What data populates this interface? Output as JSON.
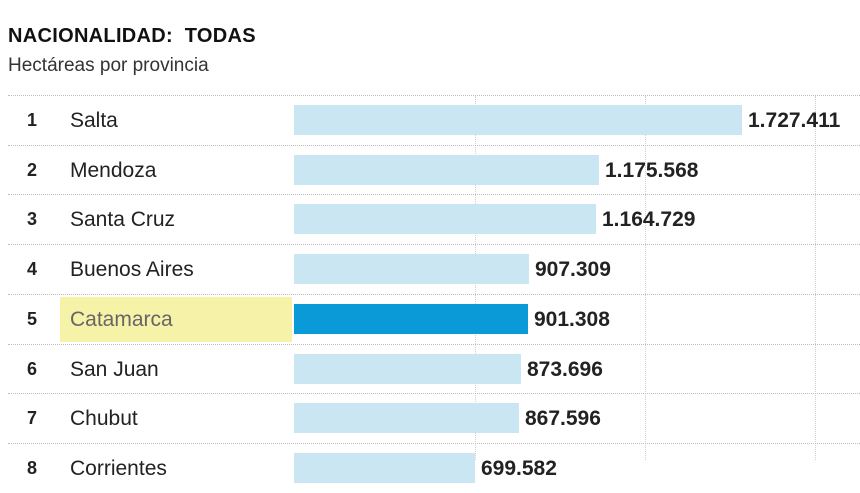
{
  "chart_data": {
    "type": "bar",
    "title": "NACIONALIDAD:  TODAS",
    "subtitle": "Hectáreas por provincia",
    "orientation": "horizontal",
    "highlight_color": "#0a9ad8",
    "bar_color": "#c9e6f2",
    "highlight_label_color": "#f6f2a8",
    "rows": [
      {
        "rank": "1",
        "name": "Salta",
        "value": 1727411,
        "label": "1.727.411",
        "highlight": false
      },
      {
        "rank": "2",
        "name": "Mendoza",
        "value": 1175568,
        "label": "1.175.568",
        "highlight": false
      },
      {
        "rank": "3",
        "name": "Santa Cruz",
        "value": 1164729,
        "label": "1.164.729",
        "highlight": false
      },
      {
        "rank": "4",
        "name": "Buenos Aires",
        "value": 907309,
        "label": "907.309",
        "highlight": false
      },
      {
        "rank": "5",
        "name": "Catamarca",
        "value": 901308,
        "label": "901.308",
        "highlight": true
      },
      {
        "rank": "6",
        "name": "San Juan",
        "value": 873696,
        "label": "873.696",
        "highlight": false
      },
      {
        "rank": "7",
        "name": "Chubut",
        "value": 867596,
        "label": "867.596",
        "highlight": false
      },
      {
        "rank": "8",
        "name": "Corrientes",
        "value": 699582,
        "label": "699.582",
        "highlight": false
      }
    ]
  }
}
